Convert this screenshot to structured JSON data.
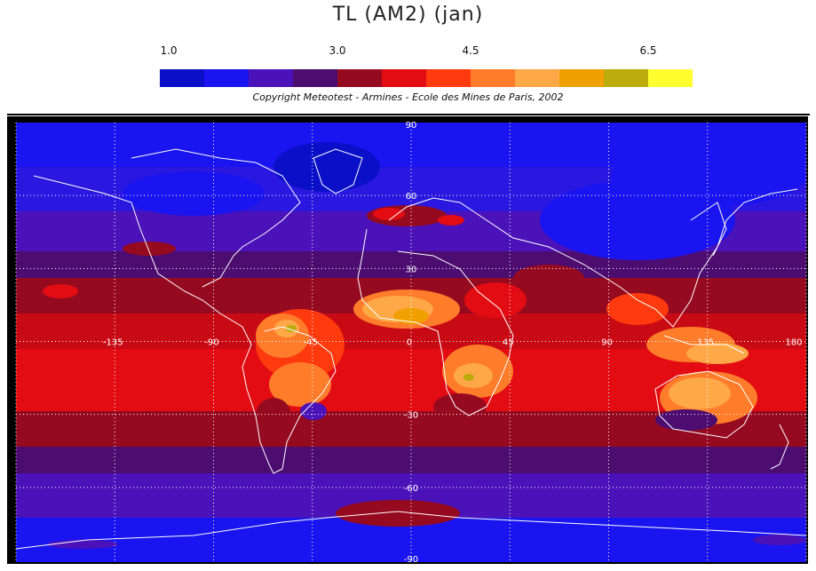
{
  "title": "TL (AM2)   (jan)",
  "colorbar": {
    "ticks": [
      {
        "label": "1.0",
        "value": 1.0
      },
      {
        "label": "3.0",
        "value": 3.0
      },
      {
        "label": "4.5",
        "value": 4.5
      },
      {
        "label": "6.5",
        "value": 6.5
      }
    ],
    "range": [
      1.0,
      7.0
    ],
    "colors": [
      "#0a10c8",
      "#1a14f0",
      "#4a12b8",
      "#4c0c70",
      "#960a20",
      "#e20c12",
      "#ff3a0e",
      "#ff7c2a",
      "#ffa848",
      "#f0a000",
      "#bcac0c",
      "#ffff30"
    ]
  },
  "copyright": "Copyright Meteotest - Armines - Ecole des Mines de Paris, 2002",
  "map": {
    "lon_labels": [
      "-135",
      "-90",
      "-45",
      "0",
      "45",
      "90",
      "135",
      "180"
    ],
    "lat_labels": [
      "90",
      "60",
      "30",
      "-30",
      "-60",
      "-90"
    ],
    "lon_values": [
      -135,
      -90,
      -45,
      0,
      45,
      90,
      135,
      180
    ],
    "lat_values": [
      90,
      60,
      30,
      -30,
      -60,
      -90
    ]
  }
}
